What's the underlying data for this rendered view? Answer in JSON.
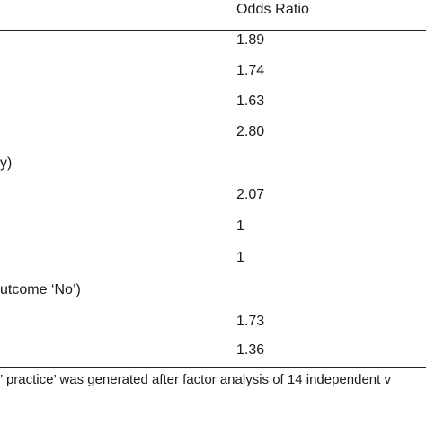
{
  "table": {
    "column_header": "Odds Ratio",
    "rows": [
      {
        "label": "",
        "value": "1.89"
      },
      {
        "label": "",
        "value": "1.74"
      },
      {
        "label": "",
        "value": "1.63"
      },
      {
        "label": "",
        "value": "2.80"
      },
      {
        "label": "y)",
        "value": ""
      },
      {
        "label": "",
        "value": "2.07"
      },
      {
        "label": "",
        "value": "1"
      },
      {
        "label": "",
        "value": "1"
      },
      {
        "label": "utcome ‘No’)",
        "value": ""
      },
      {
        "label": "",
        "value": "1.73"
      },
      {
        "label": "",
        "value": "1.36"
      }
    ],
    "footnote": "’ practice’ was generated after factor analysis of 14 independent v"
  }
}
